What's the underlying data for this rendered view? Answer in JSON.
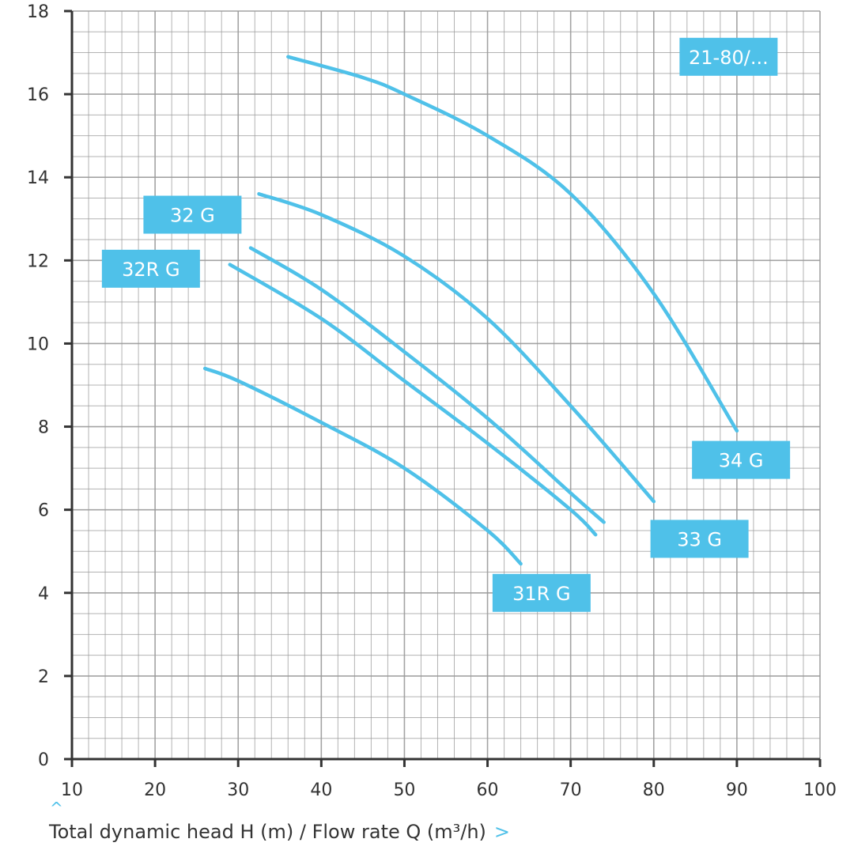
{
  "chart_data": {
    "type": "line",
    "xlim": [
      10,
      100
    ],
    "ylim": [
      0,
      18
    ],
    "x_ticks": [
      "10",
      "20",
      "30",
      "40",
      "50",
      "60",
      "70",
      "80",
      "90",
      "100"
    ],
    "y_ticks": [
      "0",
      "2",
      "4",
      "6",
      "8",
      "10",
      "12",
      "14",
      "16",
      "18"
    ],
    "grid": true,
    "colors": {
      "curve": "#4fc1e9",
      "label_bg": "#4fc1e9",
      "grid": "#9a9a9a",
      "axis": "#333333"
    },
    "series": [
      {
        "name": "21-80/...",
        "x": [
          36,
          45,
          50,
          60,
          70,
          80,
          90
        ],
        "y": [
          16.9,
          16.4,
          16.0,
          15.0,
          13.6,
          11.2,
          7.9
        ]
      },
      {
        "name": "34 G",
        "x": [
          32.5,
          40,
          50,
          60,
          70,
          80
        ],
        "y": [
          13.6,
          13.1,
          12.1,
          10.6,
          8.5,
          6.2
        ]
      },
      {
        "name": "32 G",
        "x": [
          31.5,
          40,
          50,
          60,
          70,
          74
        ],
        "y": [
          12.3,
          11.3,
          9.8,
          8.2,
          6.4,
          5.7
        ]
      },
      {
        "name": "33 G",
        "x": [
          29,
          40,
          50,
          60,
          70,
          73
        ],
        "y": [
          11.9,
          10.6,
          9.1,
          7.6,
          6.0,
          5.4
        ]
      },
      {
        "name": "31R G",
        "x": [
          26,
          30,
          40,
          50,
          60,
          64
        ],
        "y": [
          9.4,
          9.1,
          8.1,
          7.0,
          5.5,
          4.7
        ]
      }
    ],
    "labels": [
      {
        "text": "21-80/...",
        "x": 89,
        "y": 16.9
      },
      {
        "text": "32 G",
        "x": 24.5,
        "y": 13.1
      },
      {
        "text": "32R G",
        "x": 19.5,
        "y": 11.8
      },
      {
        "text": "34 G",
        "x": 90.5,
        "y": 7.2
      },
      {
        "text": "33 G",
        "x": 85.5,
        "y": 5.3
      },
      {
        "text": "31R G",
        "x": 66.5,
        "y": 4.0
      }
    ]
  },
  "footer": {
    "caret": "^",
    "text": "Total dynamic head H (m) / Flow rate Q (m³/h)",
    "chevron": ">"
  }
}
